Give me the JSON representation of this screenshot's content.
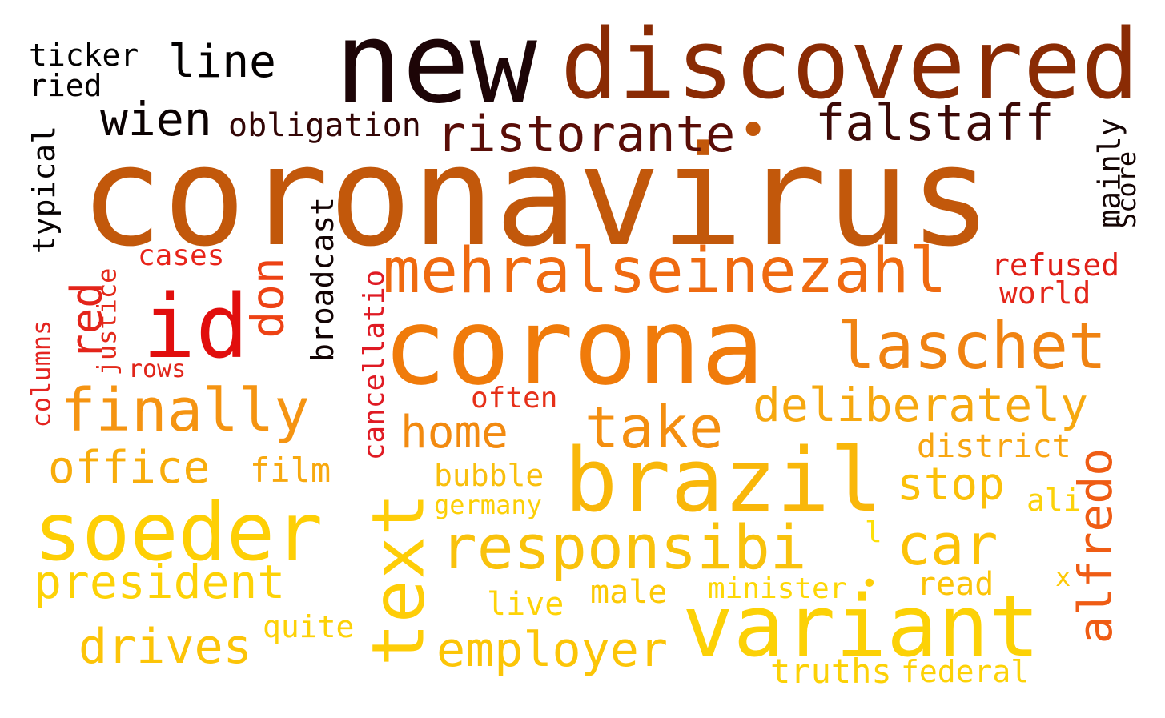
{
  "words": {
    "coronavirus": "coronavirus",
    "new": "new",
    "discovered": "discovered",
    "corona": "corona",
    "mehralseinezahl": "mehralseinezahl",
    "laschet": "laschet",
    "brazil": "brazil",
    "variant": "variant",
    "soeder": "soeder",
    "id": "id",
    "responsibi": "responsibi",
    "finally": "finally",
    "deliberately": "deliberately",
    "take": "take",
    "home": "home",
    "office": "office",
    "president": "president",
    "drives": "drives",
    "employer": "employer",
    "car": "car",
    "stop": "stop",
    "falstaff": "falstaff",
    "ristorante": "ristorante",
    "wien": "wien",
    "line": "line",
    "ticker": "ticker",
    "ried": "ried",
    "obligation": "obligation",
    "dot": "•",
    "cases": "cases",
    "refused": "refused",
    "world": "world",
    "rows": "rows",
    "often": "often",
    "film": "film",
    "bubble": "bubble",
    "germany": "germany",
    "district": "district",
    "ali": "ali",
    "l": "l",
    "quite": "quite",
    "live": "live",
    "male": "male",
    "minister": "minister",
    "read": "read",
    "x": "x",
    "truths": "truths",
    "federal": "federal",
    "typical": "typical",
    "columns": "columns",
    "justice": "justice",
    "red": "red",
    "don": "don",
    "broadcast": "broadcast",
    "cancellatio": "cancellatio",
    "text": "text",
    "alfredo": "alfredo",
    "mainly": "mainly",
    "score": "Score"
  },
  "colors": {
    "background": "#ffffff",
    "palette": [
      "#1d0507",
      "#8a2b04",
      "#c2580b",
      "#f07b0a",
      "#e10e0d",
      "#f9b70a",
      "#fcd106"
    ]
  }
}
